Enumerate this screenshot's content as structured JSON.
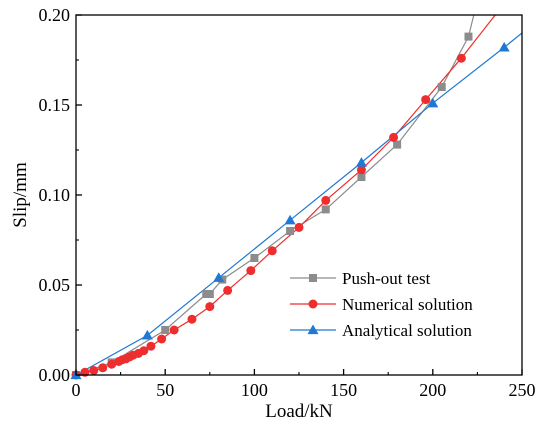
{
  "chart_data": {
    "type": "line",
    "xlabel": "Load/kN",
    "ylabel": "Slip/mm",
    "xlim": [
      0,
      250
    ],
    "ylim": [
      0,
      0.2
    ],
    "xticks": [
      0,
      50,
      100,
      150,
      200,
      250
    ],
    "yticks": [
      0.0,
      0.05,
      0.1,
      0.15,
      0.2
    ],
    "xtick_labels": [
      "0",
      "50",
      "100",
      "150",
      "200",
      "250"
    ],
    "ytick_labels": [
      "0.00",
      "0.05",
      "0.10",
      "0.15",
      "0.20"
    ],
    "grid": false,
    "legend_position": "bottom-right",
    "series": [
      {
        "name": "Push-out test",
        "color": "#8c8c8c",
        "marker": "square",
        "x": [
          0,
          20,
          50,
          73,
          75,
          82,
          100,
          120,
          140,
          160,
          180,
          205,
          220,
          223
        ],
        "y": [
          0,
          0.007,
          0.025,
          0.045,
          0.045,
          0.053,
          0.065,
          0.08,
          0.092,
          0.11,
          0.128,
          0.16,
          0.188,
          0.2
        ],
        "marker_count": 13
      },
      {
        "name": "Numerical solution",
        "color": "#ee2e2e",
        "marker": "circle",
        "x": [
          0,
          5,
          10,
          15,
          20,
          24,
          26,
          28,
          30,
          32,
          35,
          38,
          42,
          48,
          55,
          65,
          75,
          85,
          98,
          110,
          125,
          140,
          160,
          178,
          196,
          216,
          235
        ],
        "y": [
          0,
          0.0015,
          0.0025,
          0.004,
          0.006,
          0.0075,
          0.0085,
          0.009,
          0.01,
          0.011,
          0.012,
          0.0135,
          0.016,
          0.02,
          0.025,
          0.031,
          0.038,
          0.047,
          0.058,
          0.069,
          0.082,
          0.097,
          0.114,
          0.132,
          0.153,
          0.176,
          0.2
        ],
        "marker_count": 26
      },
      {
        "name": "Analytical solution",
        "color": "#1f78d4",
        "marker": "triangle",
        "x": [
          0,
          40,
          80,
          120,
          160,
          200,
          240,
          250
        ],
        "y": [
          0,
          0.022,
          0.054,
          0.086,
          0.118,
          0.151,
          0.182,
          0.19
        ],
        "marker_count": 7
      }
    ]
  }
}
